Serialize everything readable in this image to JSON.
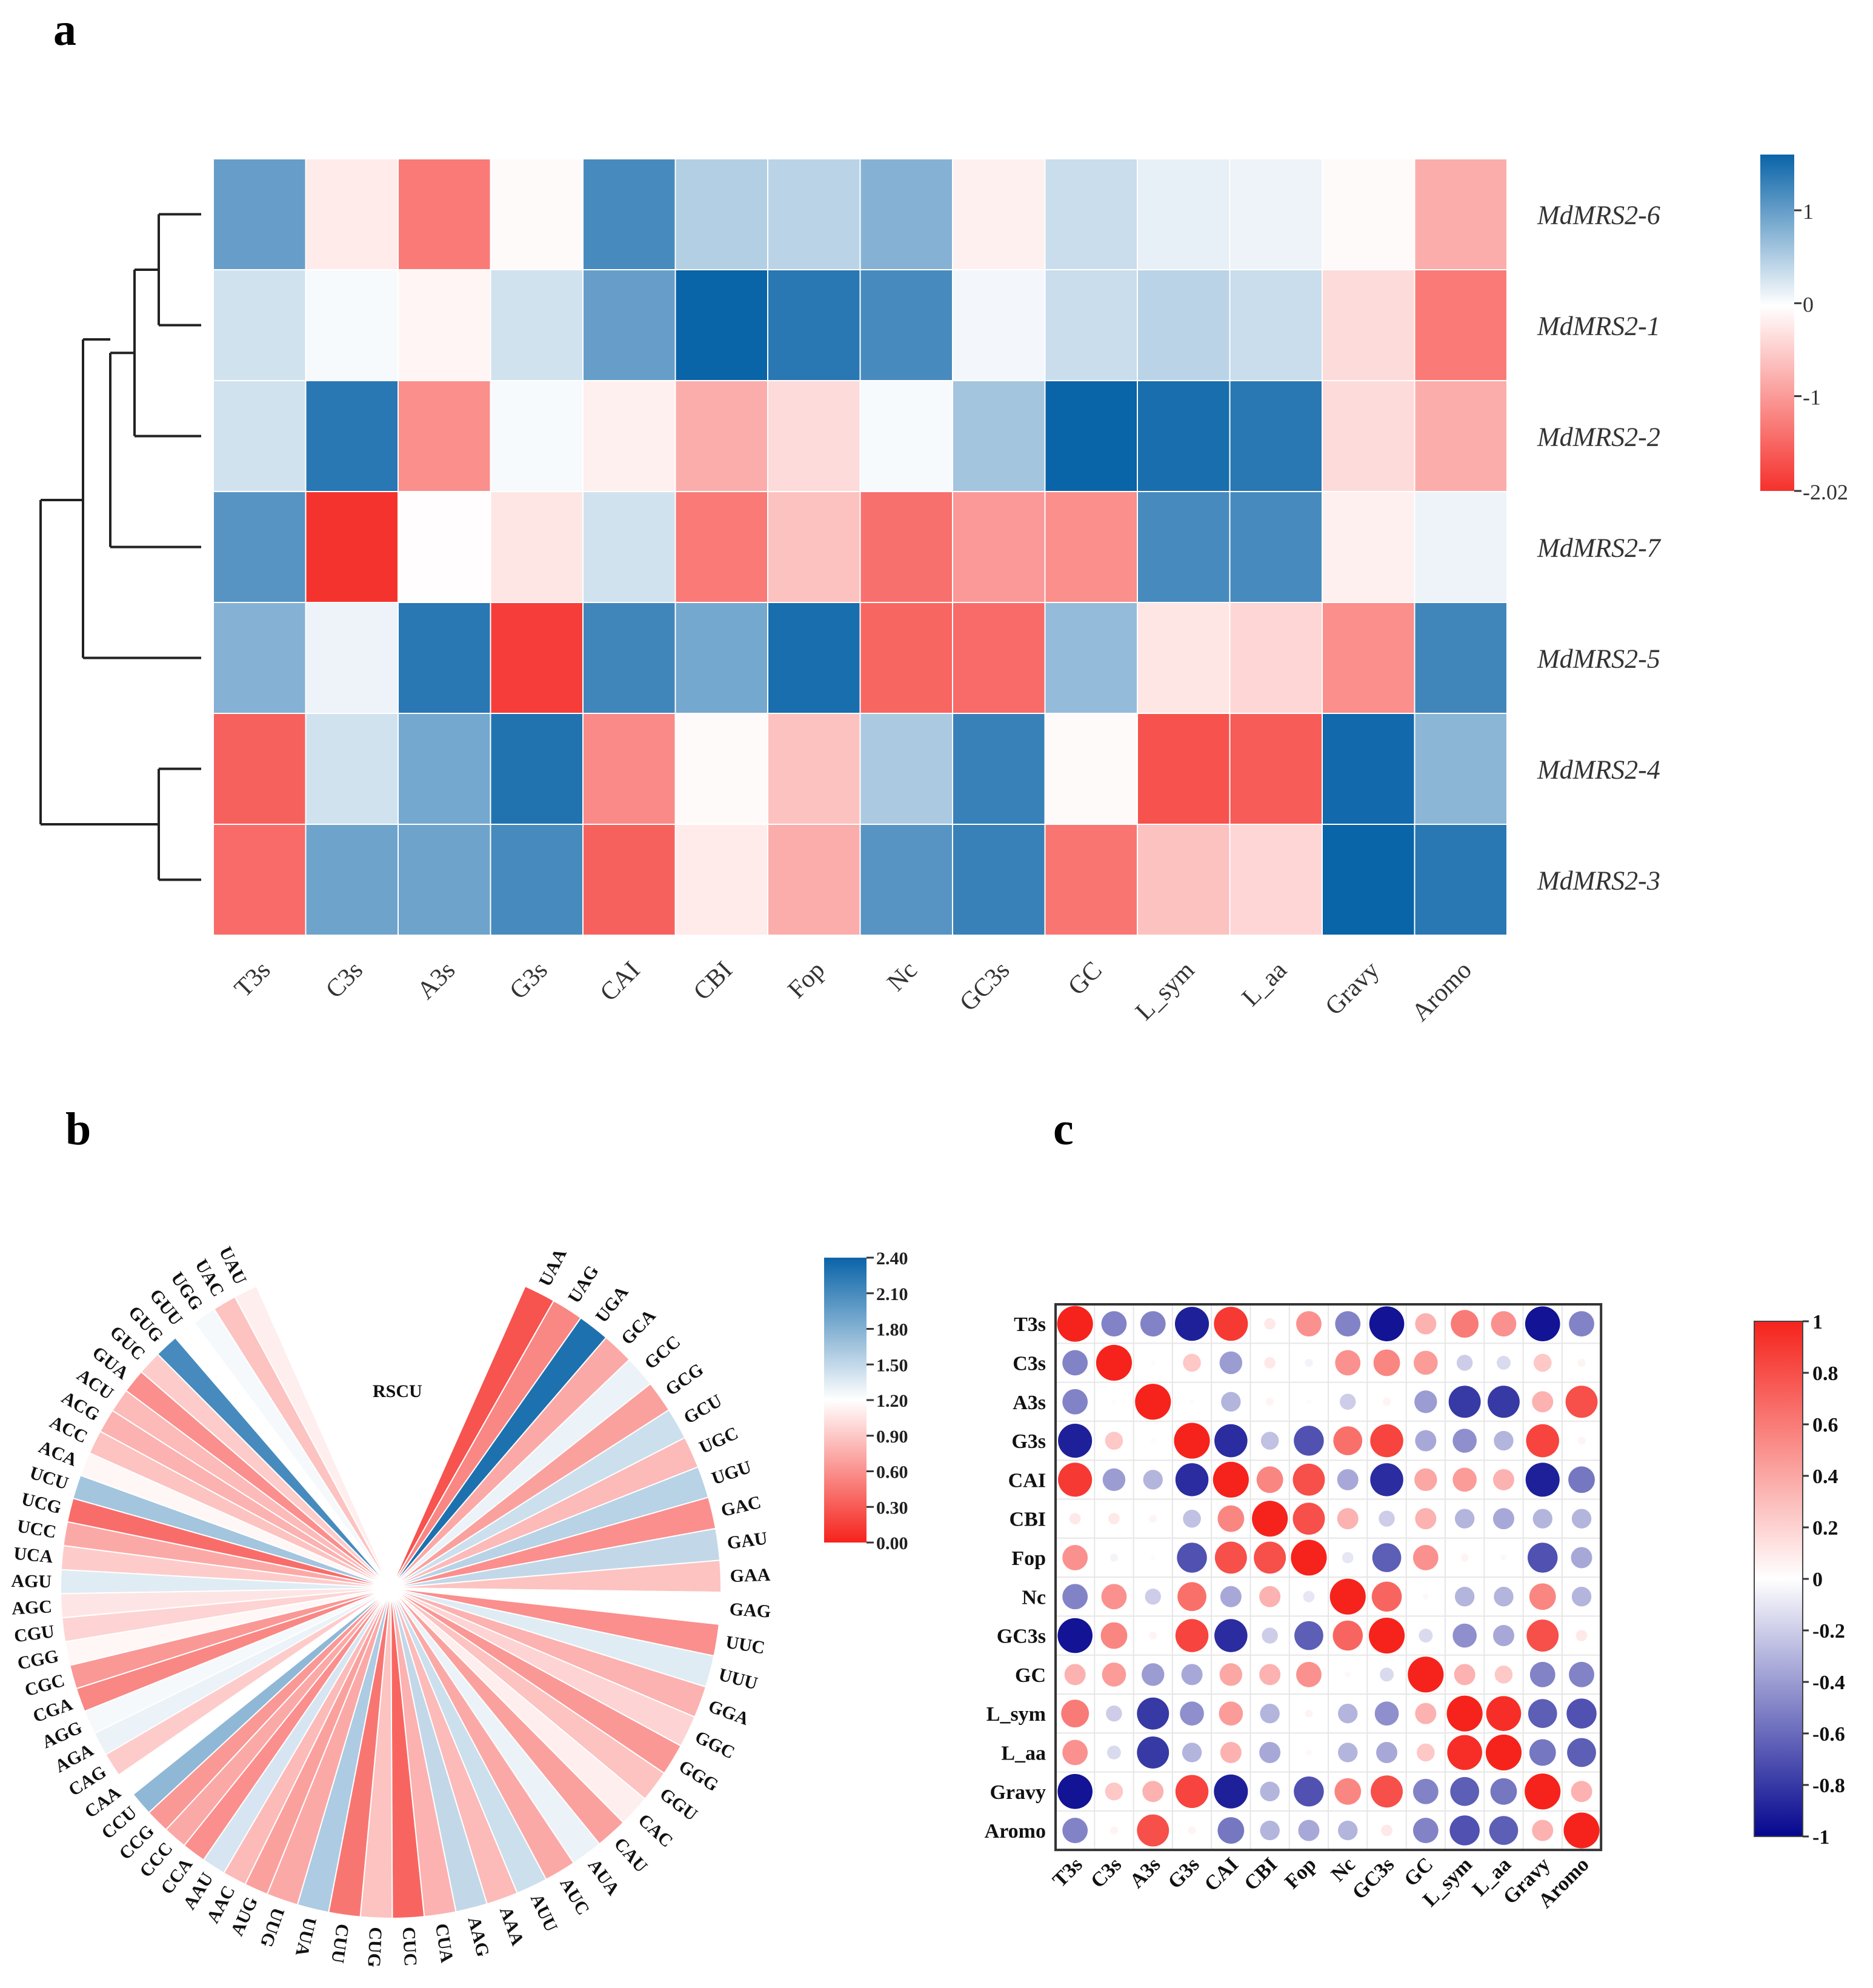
{
  "panel_labels": {
    "a": "a",
    "b": "b",
    "c": "c"
  },
  "colors": {
    "red": "#f5312c",
    "white": "#ffffff",
    "blue": "#0a64a8",
    "corr_red": "#f5231c",
    "corr_blue": "#05078f"
  },
  "chart_data": [
    {
      "type": "heatmap",
      "panel": "a",
      "title": "",
      "columns": [
        "T3s",
        "C3s",
        "A3s",
        "G3s",
        "CAI",
        "CBI",
        "Fop",
        "Nc",
        "GC3s",
        "GC",
        "L_sym",
        "L_aa",
        "Gravy",
        "Aromo"
      ],
      "rows": [
        "MdMRS2-6",
        "MdMRS2-1",
        "MdMRS2-2",
        "MdMRS2-7",
        "MdMRS2-5",
        "MdMRS2-4",
        "MdMRS2-3"
      ],
      "values": [
        [
          1.0,
          -0.2,
          -1.3,
          -0.05,
          1.2,
          0.5,
          0.45,
          0.8,
          -0.15,
          0.35,
          0.15,
          0.12,
          -0.05,
          -0.8
        ],
        [
          0.3,
          0.05,
          -0.1,
          0.3,
          1.0,
          1.6,
          1.4,
          1.2,
          0.08,
          0.35,
          0.45,
          0.35,
          -0.35,
          -1.3
        ],
        [
          0.3,
          1.4,
          -1.1,
          0.05,
          -0.15,
          -0.8,
          -0.35,
          0.05,
          0.6,
          1.6,
          1.5,
          1.4,
          -0.35,
          -0.8
        ],
        [
          1.1,
          -2.0,
          -0.02,
          -0.25,
          0.3,
          -1.3,
          -0.6,
          -1.4,
          -1.0,
          -1.1,
          1.2,
          1.2,
          -0.15,
          0.12
        ],
        [
          0.8,
          0.12,
          1.4,
          -1.9,
          1.25,
          0.9,
          1.5,
          -1.5,
          -1.45,
          0.7,
          -0.25,
          -0.4,
          -1.1,
          1.25
        ],
        [
          -1.55,
          0.3,
          0.9,
          1.45,
          -1.15,
          -0.05,
          -0.6,
          0.55,
          1.3,
          -0.05,
          -1.7,
          -1.6,
          1.55,
          0.75
        ],
        [
          -1.45,
          0.95,
          0.95,
          1.2,
          -1.55,
          -0.2,
          -0.8,
          1.1,
          1.3,
          -1.35,
          -0.6,
          -0.4,
          1.6,
          1.4
        ]
      ],
      "colorbar": {
        "ticks": [
          "1",
          "0",
          "-1",
          "-2.02"
        ],
        "min": -2.02,
        "max": 1.6
      },
      "dendrogram": "((((MdMRS2-6,MdMRS2-1),MdMRS2-2),MdMRS2-7),MdMRS2-5),(MdMRS2-4,MdMRS2-3)"
    },
    {
      "type": "radial_heatmap",
      "panel": "b",
      "title": "RSCU",
      "left_codons": [
        "UAU",
        "UAC",
        "UGG",
        "GUU",
        "GUG",
        "GUC",
        "GUA",
        "ACU",
        "ACG",
        "ACC",
        "ACA",
        "UCU",
        "UCG",
        "UCC",
        "UCA",
        "AGU",
        "AGC",
        "CGU",
        "CGG",
        "CGC",
        "CGA",
        "AGG",
        "AGA",
        "CAG",
        "CAA",
        "CCU",
        "CCG",
        "CCC",
        "CCA",
        "AAU",
        "AAC",
        "AUG"
      ],
      "left_values": [
        1.1,
        0.85,
        1.25,
        1.2,
        2.1,
        0.9,
        0.55,
        0.8,
        0.75,
        0.85,
        1.15,
        1.65,
        0.35,
        0.7,
        0.9,
        1.35,
        1.05,
        0.95,
        1.15,
        0.6,
        0.5,
        1.25,
        1.3,
        0.9,
        1.2,
        1.75,
        0.6,
        0.7,
        0.55,
        1.4,
        0.8,
        0.65
      ],
      "right_codons": [
        "UAA",
        "UAG",
        "UGA",
        "GCA",
        "GCC",
        "GCG",
        "GCU",
        "UGC",
        "UGU",
        "GAC",
        "GAU",
        "GAA",
        "GAG",
        "UUC",
        "UUU",
        "GGA",
        "GGC",
        "GGG",
        "GGU",
        "CAC",
        "CAU",
        "AUA",
        "AUC",
        "AUU",
        "AAA",
        "AAG",
        "CUA",
        "CUC",
        "CUG",
        "CUU",
        "UUA",
        "UUG"
      ],
      "right_values": [
        0.2,
        0.5,
        2.3,
        0.7,
        1.3,
        0.65,
        1.45,
        0.8,
        1.55,
        0.55,
        1.5,
        0.85,
        1.2,
        0.55,
        1.35,
        0.75,
        0.95,
        0.6,
        0.85,
        1.1,
        0.65,
        1.3,
        0.7,
        1.45,
        0.8,
        1.5,
        0.75,
        0.3,
        0.85,
        0.4,
        1.6,
        0.7
      ],
      "colorbar": {
        "ticks": [
          "2.40",
          "2.10",
          "1.80",
          "1.50",
          "1.20",
          "0.90",
          "0.60",
          "0.30",
          "0.00"
        ],
        "min": 0.0,
        "max": 2.4
      }
    },
    {
      "type": "correlation_matrix",
      "panel": "c",
      "labels": [
        "T3s",
        "C3s",
        "A3s",
        "G3s",
        "CAI",
        "CBI",
        "Fop",
        "Nc",
        "GC3s",
        "GC",
        "L_sym",
        "L_aa",
        "Gravy",
        "Aromo"
      ],
      "matrix": [
        [
          1,
          -0.5,
          -0.5,
          -0.9,
          0.9,
          0.1,
          0.5,
          -0.5,
          -0.95,
          0.35,
          0.6,
          0.5,
          -0.95,
          -0.5
        ],
        [
          -0.5,
          1,
          0.02,
          0.25,
          -0.4,
          0.1,
          -0.05,
          0.5,
          0.55,
          0.45,
          -0.2,
          -0.15,
          0.25,
          0.05
        ],
        [
          -0.5,
          0.02,
          1,
          0.02,
          -0.3,
          0.05,
          0.02,
          -0.2,
          0.05,
          -0.4,
          -0.8,
          -0.8,
          0.35,
          0.8
        ],
        [
          -0.9,
          0.25,
          0.02,
          1,
          -0.85,
          -0.25,
          -0.7,
          0.65,
          0.85,
          -0.35,
          -0.45,
          -0.3,
          0.85,
          0.05
        ],
        [
          0.9,
          -0.4,
          -0.3,
          -0.85,
          1,
          0.55,
          0.8,
          -0.35,
          -0.85,
          0.4,
          0.45,
          0.35,
          -0.9,
          -0.55
        ],
        [
          0.1,
          0.1,
          0.05,
          -0.25,
          0.55,
          1,
          0.8,
          0.35,
          -0.2,
          0.35,
          -0.3,
          -0.35,
          -0.3,
          -0.3
        ],
        [
          0.5,
          -0.05,
          0.02,
          -0.7,
          0.8,
          0.8,
          1,
          -0.1,
          -0.65,
          0.5,
          0.05,
          0.03,
          -0.7,
          -0.35
        ],
        [
          -0.5,
          0.5,
          -0.2,
          0.65,
          -0.35,
          0.35,
          -0.1,
          1,
          0.7,
          0.03,
          -0.3,
          -0.3,
          0.55,
          -0.3
        ],
        [
          -0.95,
          0.55,
          0.05,
          0.85,
          -0.85,
          -0.2,
          -0.65,
          0.7,
          1,
          -0.15,
          -0.45,
          -0.35,
          0.8,
          0.1
        ],
        [
          0.35,
          0.45,
          -0.4,
          -0.35,
          0.4,
          0.35,
          0.5,
          0.03,
          -0.15,
          1,
          0.35,
          0.25,
          -0.5,
          -0.5
        ],
        [
          0.6,
          -0.2,
          -0.8,
          -0.45,
          0.45,
          -0.3,
          0.05,
          -0.3,
          -0.45,
          0.35,
          1,
          0.95,
          -0.65,
          -0.7
        ],
        [
          0.5,
          -0.15,
          -0.8,
          -0.3,
          0.35,
          -0.35,
          0.03,
          -0.3,
          -0.35,
          0.25,
          0.95,
          1,
          -0.55,
          -0.65
        ],
        [
          -0.95,
          0.25,
          0.35,
          0.85,
          -0.9,
          -0.3,
          -0.7,
          0.55,
          0.8,
          -0.5,
          -0.65,
          -0.55,
          1,
          0.35
        ],
        [
          -0.5,
          0.05,
          0.8,
          0.05,
          -0.55,
          -0.3,
          -0.35,
          -0.3,
          0.1,
          -0.5,
          -0.7,
          -0.65,
          0.35,
          1
        ]
      ],
      "colorbar": {
        "ticks": [
          "1",
          "0.8",
          "0.6",
          "0.4",
          "0.2",
          "0",
          "-0.2",
          "-0.4",
          "-0.6",
          "-0.8",
          "-1"
        ],
        "min": -1,
        "max": 1
      }
    }
  ]
}
